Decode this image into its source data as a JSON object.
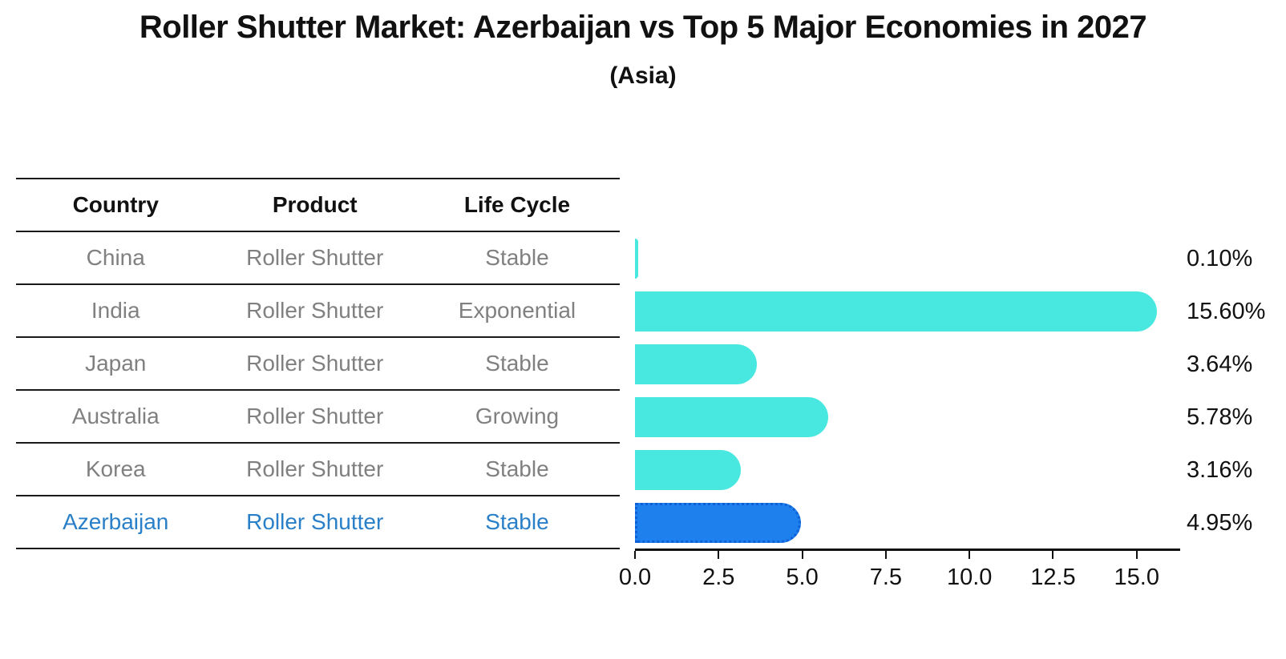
{
  "chart_data": {
    "type": "bar",
    "orientation": "horizontal",
    "title": "Roller Shutter Market: Azerbaijan vs Top 5 Major Economies in 2027",
    "subtitle": "(Asia)",
    "categories": [
      "China",
      "India",
      "Japan",
      "Australia",
      "Korea",
      "Azerbaijan"
    ],
    "values": [
      0.1,
      15.6,
      3.64,
      5.78,
      3.16,
      4.95
    ],
    "value_labels": [
      "0.10%",
      "15.60%",
      "3.64%",
      "5.78%",
      "3.16%",
      "4.95%"
    ],
    "xlim": [
      0,
      16.3
    ],
    "xticks": [
      0,
      2.5,
      5,
      7.5,
      10,
      12.5,
      15
    ],
    "xtick_labels": [
      "0.0",
      "2.5",
      "5.0",
      "7.5",
      "10.0",
      "12.5",
      "15.0"
    ],
    "grid": false,
    "legend": false,
    "bar_color": "#48E8E0",
    "highlight_index": 5,
    "highlight_color": "#1E80EC",
    "highlight_border_color": "#0E5FD8"
  },
  "table": {
    "headers": [
      "Country",
      "Product",
      "Life Cycle"
    ],
    "rows": [
      {
        "country": "China",
        "product": "Roller Shutter",
        "life_cycle": "Stable",
        "highlight": false
      },
      {
        "country": "India",
        "product": "Roller Shutter",
        "life_cycle": "Exponential",
        "highlight": false
      },
      {
        "country": "Japan",
        "product": "Roller Shutter",
        "life_cycle": "Stable",
        "highlight": false
      },
      {
        "country": "Australia",
        "product": "Roller Shutter",
        "life_cycle": "Growing",
        "highlight": false
      },
      {
        "country": "Korea",
        "product": "Roller Shutter",
        "life_cycle": "Stable",
        "highlight": false
      },
      {
        "country": "Azerbaijan",
        "product": "Roller Shutter",
        "life_cycle": "Stable",
        "highlight": true
      }
    ]
  },
  "colors": {
    "background": "#ffffff",
    "text_dark": "#111111",
    "row_text": "#808080",
    "accent_text": "#2980C8",
    "line": "#1a1a1a",
    "axis": "#111111"
  }
}
